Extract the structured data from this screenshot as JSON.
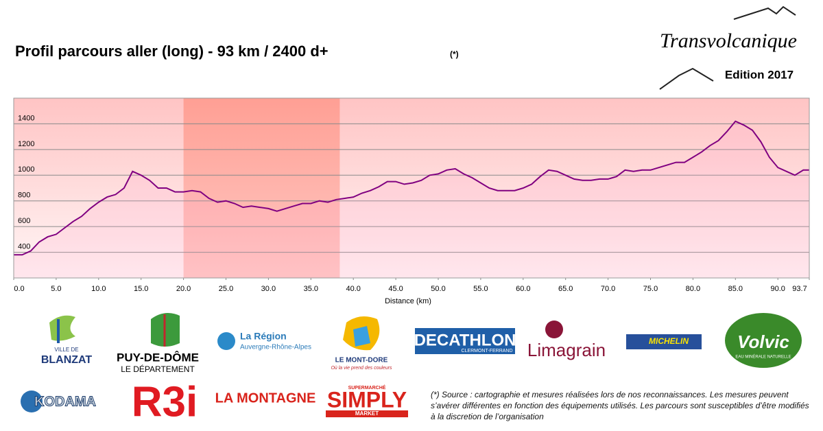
{
  "header": {
    "logo": "Transvolcanique",
    "edition": "Edition 2017",
    "note_mark": "(*)"
  },
  "chart_data": {
    "type": "line",
    "title": "Profil parcours aller (long) - 93 km / 2400 d+",
    "x_label": "Distance  (km)",
    "color": "#800080",
    "grid": true,
    "highlight": [
      20,
      38.4
    ],
    "x": [
      0,
      1,
      2,
      3,
      4,
      5,
      6,
      7,
      8,
      9,
      10,
      11,
      12,
      13,
      14,
      15,
      16,
      17,
      18,
      19,
      20,
      21,
      22,
      23,
      24,
      25,
      26,
      27,
      28,
      29,
      30,
      31,
      32,
      33,
      34,
      35,
      36,
      37,
      38,
      39,
      40,
      41,
      42,
      43,
      44,
      45,
      46,
      47,
      48,
      49,
      50,
      51,
      52,
      53,
      54,
      55,
      56,
      57,
      58,
      59,
      60,
      61,
      62,
      63,
      64,
      65,
      66,
      67,
      68,
      69,
      70,
      71,
      72,
      73,
      74,
      75,
      76,
      77,
      78,
      79,
      80,
      81,
      82,
      83,
      84,
      85,
      86,
      87,
      88,
      89,
      90,
      91,
      92,
      93,
      93.7
    ],
    "values": [
      380,
      380,
      410,
      480,
      520,
      540,
      590,
      640,
      680,
      740,
      790,
      830,
      850,
      900,
      1030,
      1000,
      960,
      900,
      900,
      870,
      870,
      880,
      870,
      820,
      790,
      800,
      780,
      750,
      760,
      750,
      740,
      720,
      740,
      760,
      780,
      780,
      800,
      790,
      810,
      820,
      830,
      860,
      880,
      910,
      950,
      950,
      930,
      940,
      960,
      1000,
      1010,
      1040,
      1050,
      1010,
      980,
      940,
      900,
      880,
      880,
      880,
      900,
      930,
      990,
      1040,
      1030,
      1000,
      970,
      960,
      960,
      970,
      970,
      990,
      1040,
      1030,
      1040,
      1040,
      1060,
      1080,
      1100,
      1100,
      1140,
      1180,
      1230,
      1270,
      1340,
      1420,
      1390,
      1350,
      1260,
      1140,
      1060,
      1030,
      1000,
      1040,
      1040
    ],
    "xlim": [
      0,
      93.7
    ],
    "ylim": [
      200,
      1600
    ],
    "xticks": [
      {
        "value": 0,
        "label": "0.0"
      },
      {
        "value": 5,
        "label": "5.0"
      },
      {
        "value": 10,
        "label": "10.0"
      },
      {
        "value": 15,
        "label": "15.0"
      },
      {
        "value": 20,
        "label": "20.0"
      },
      {
        "value": 25,
        "label": "25.0"
      },
      {
        "value": 30,
        "label": "30.0"
      },
      {
        "value": 35,
        "label": "35.0"
      },
      {
        "value": 40,
        "label": "40.0"
      },
      {
        "value": 45,
        "label": "45.0"
      },
      {
        "value": 50,
        "label": "50.0"
      },
      {
        "value": 55,
        "label": "55.0"
      },
      {
        "value": 60,
        "label": "60.0"
      },
      {
        "value": 65,
        "label": "65.0"
      },
      {
        "value": 70,
        "label": "70.0"
      },
      {
        "value": 75,
        "label": "75.0"
      },
      {
        "value": 80,
        "label": "80.0"
      },
      {
        "value": 85,
        "label": "85.0"
      },
      {
        "value": 90,
        "label": "90.0"
      },
      93.7
    ],
    "yticks": [
      400,
      600,
      800,
      1000,
      1200,
      1400
    ]
  },
  "sponsors": [
    "VILLE DE",
    "BLANZAT",
    "PUY-DE-DÔME",
    "LE DÉPARTEMENT",
    "La Région",
    "Auvergne-Rhône-Alpes",
    "LE MONT-DORE",
    "Où la vie prend des couleurs",
    "DECATHLON",
    "CLERMONT-FERRAND",
    "Limagrain",
    "MICHELIN",
    "Volvic",
    "EAU MINÉRALE NATURELLE",
    "KODAMA",
    "R3i",
    "LA MONTAGNE",
    "SUPERMARCHÉ",
    "SIMPLY",
    "MARKET"
  ],
  "footnote": "(*) Source : cartographie et mesures réalisées lors de nos reconnaissances. Les mesures peuvent s’avérer différentes en fonction des équipements utilisés. Les parcours sont susceptibles d’être modifiés à la discretion de l’organisation"
}
